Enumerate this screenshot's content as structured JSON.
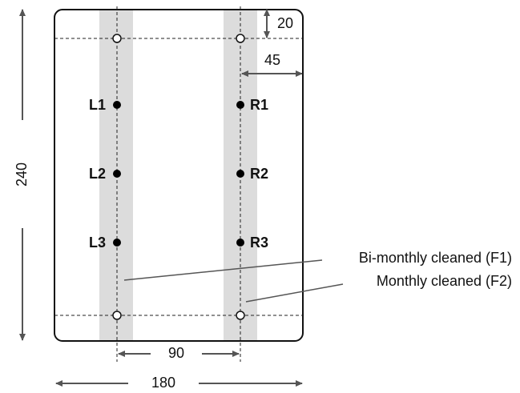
{
  "dimensions": {
    "top_offset": 20,
    "edge_offset": 45,
    "height": 240,
    "spacing": 90,
    "width": 180
  },
  "points": {
    "left": [
      "L1",
      "L2",
      "L3"
    ],
    "right": [
      "R1",
      "R2",
      "R3"
    ]
  },
  "annotations": [
    "Bi-monthly cleaned (F1)",
    "Monthly cleaned (F2)"
  ]
}
